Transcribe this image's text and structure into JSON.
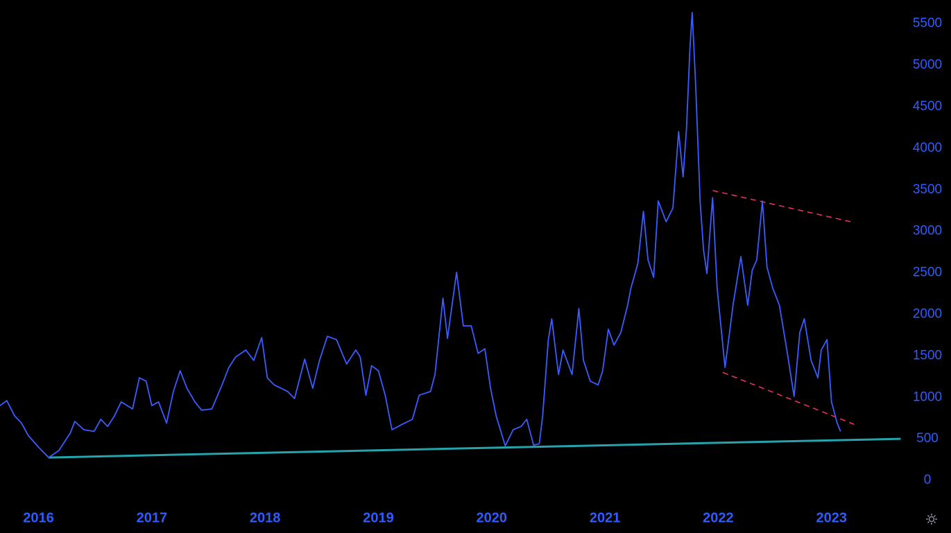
{
  "chart_data": {
    "type": "line",
    "x": [
      2015.66,
      2015.72,
      2015.79,
      2015.85,
      2015.91,
      2016.0,
      2016.09,
      2016.18,
      2016.28,
      2016.32,
      2016.4,
      2016.49,
      2016.55,
      2016.61,
      2016.67,
      2016.73,
      2016.83,
      2016.89,
      2016.95,
      2017.0,
      2017.06,
      2017.13,
      2017.19,
      2017.25,
      2017.31,
      2017.38,
      2017.44,
      2017.53,
      2017.62,
      2017.68,
      2017.74,
      2017.83,
      2017.9,
      2017.97,
      2018.02,
      2018.08,
      2018.14,
      2018.2,
      2018.26,
      2018.35,
      2018.42,
      2018.48,
      2018.55,
      2018.63,
      2018.72,
      2018.8,
      2018.84,
      2018.89,
      2018.94,
      2019.0,
      2019.06,
      2019.12,
      2019.21,
      2019.3,
      2019.36,
      2019.46,
      2019.5,
      2019.57,
      2019.61,
      2019.69,
      2019.75,
      2019.82,
      2019.88,
      2019.94,
      2019.99,
      2020.04,
      2020.12,
      2020.19,
      2020.26,
      2020.31,
      2020.37,
      2020.42,
      2020.45,
      2020.5,
      2020.53,
      2020.59,
      2020.63,
      2020.71,
      2020.77,
      2020.81,
      2020.87,
      2020.94,
      2020.98,
      2021.03,
      2021.08,
      2021.14,
      2021.2,
      2021.23,
      2021.29,
      2021.34,
      2021.38,
      2021.43,
      2021.47,
      2021.54,
      2021.6,
      2021.65,
      2021.69,
      2021.72,
      2021.75,
      2021.77,
      2021.8,
      2021.84,
      2021.87,
      2021.9,
      2021.95,
      2021.99,
      2022.06,
      2022.1,
      2022.13,
      2022.2,
      2022.26,
      2022.3,
      2022.34,
      2022.39,
      2022.43,
      2022.48,
      2022.54,
      2022.61,
      2022.67,
      2022.72,
      2022.76,
      2022.82,
      2022.88,
      2022.91,
      2022.96,
      2023.0,
      2023.05,
      2023.08
    ],
    "series": [
      {
        "color": "#3b5cff",
        "values": [
          900,
          960,
          775,
          690,
          540,
          400,
          275,
          360,
          570,
          710,
          610,
          590,
          735,
          650,
          775,
          945,
          860,
          1235,
          1195,
          900,
          945,
          690,
          1070,
          1320,
          1110,
          945,
          845,
          860,
          1150,
          1360,
          1485,
          1570,
          1445,
          1720,
          1235,
          1150,
          1110,
          1070,
          985,
          1460,
          1110,
          1445,
          1735,
          1695,
          1400,
          1570,
          1485,
          1025,
          1380,
          1320,
          1025,
          610,
          675,
          735,
          1025,
          1070,
          1275,
          2195,
          1710,
          2505,
          1860,
          1860,
          1530,
          1585,
          1110,
          775,
          415,
          610,
          650,
          735,
          425,
          440,
          775,
          1695,
          1945,
          1275,
          1570,
          1275,
          2070,
          1445,
          1195,
          1150,
          1320,
          1820,
          1630,
          1780,
          2110,
          2320,
          2610,
          3240,
          2655,
          2445,
          3365,
          3115,
          3280,
          4200,
          3655,
          4240,
          5200,
          5635,
          4780,
          3365,
          2780,
          2490,
          3405,
          2320,
          1360,
          1780,
          2110,
          2695,
          2110,
          2530,
          2655,
          3365,
          2570,
          2320,
          2110,
          1530,
          1010,
          1780,
          1945,
          1445,
          1235,
          1570,
          1695,
          945,
          690,
          590
        ]
      }
    ],
    "trend_lines": [
      {
        "color": "#26a3ab",
        "dashed": false,
        "x": [
          2016.09,
          2023.61
        ],
        "values": [
          275,
          500
        ]
      },
      {
        "color": "#e8315e",
        "dashed": true,
        "x": [
          2021.95,
          2023.17
        ],
        "values": [
          3490,
          3115
        ]
      },
      {
        "color": "#e8315e",
        "dashed": true,
        "x": [
          2022.04,
          2023.2
        ],
        "values": [
          1300,
          675
        ]
      }
    ],
    "xlim": [
      2015.66,
      2023.62
    ],
    "xticks": [
      2016,
      2017,
      2018,
      2019,
      2020,
      2021,
      2022,
      2023
    ],
    "ylim": [
      -225,
      5785
    ],
    "yticks": [
      0,
      500,
      1000,
      1500,
      2000,
      2500,
      3000,
      3500,
      4000,
      4500,
      5000,
      5500
    ],
    "tick_color": "#2f5bff"
  }
}
